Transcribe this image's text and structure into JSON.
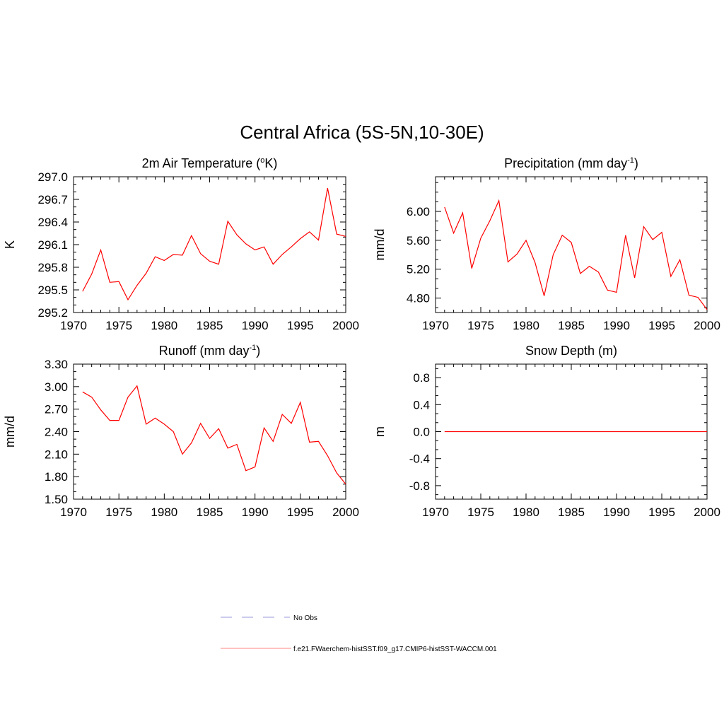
{
  "figure": {
    "title": "Central Africa (5S-5N,10-30E)",
    "line_color": "#ff0000",
    "obs_color": "#9999dd"
  },
  "legend": {
    "placement": "bottom-center",
    "items": [
      {
        "label": "No Obs",
        "style": "dashed",
        "color": "#9999dd"
      },
      {
        "label": "f.e21.FWaerchem-histSST.f09_g17.CMIP6-histSST-WACCM.001",
        "style": "solid",
        "color": "#ff0000"
      }
    ]
  },
  "chart_data": [
    {
      "type": "line",
      "title": "2m Air Temperature (",
      "title_sup": "o",
      "title_after": "K)",
      "ylabel": "K",
      "xlim": [
        1970,
        2000
      ],
      "ylim": [
        295.2,
        297.0
      ],
      "xticks": [
        "1970",
        "1975",
        "1980",
        "1985",
        "1990",
        "1995",
        "2000"
      ],
      "yticks": [
        "295.2",
        "295.5",
        "295.8",
        "296.1",
        "296.4",
        "296.7",
        "297.0"
      ],
      "series": [
        {
          "x": [
            1971,
            1972,
            1973,
            1974,
            1975,
            1976,
            1977,
            1978,
            1979,
            1980,
            1981,
            1982,
            1983,
            1984,
            1985,
            1986,
            1987,
            1988,
            1989,
            1990,
            1991,
            1992,
            1993,
            1994,
            1995,
            1996,
            1997,
            1998,
            1999,
            2000
          ],
          "values": [
            295.48,
            295.71,
            296.03,
            295.6,
            295.61,
            295.37,
            295.56,
            295.72,
            295.94,
            295.89,
            295.97,
            295.96,
            296.22,
            295.98,
            295.88,
            295.84,
            296.41,
            296.23,
            296.11,
            296.03,
            296.07,
            295.84,
            295.97,
            296.07,
            296.18,
            296.27,
            296.16,
            296.85,
            296.24,
            296.21
          ]
        }
      ]
    },
    {
      "type": "line",
      "title": "Precipitation (mm day",
      "title_sup": "-1",
      "title_after": ")",
      "ylabel": "mm/d",
      "xlim": [
        1970,
        2000
      ],
      "ylim": [
        4.6,
        6.48
      ],
      "xticks": [
        "1970",
        "1975",
        "1980",
        "1985",
        "1990",
        "1995",
        "2000"
      ],
      "yticks": [
        "4.80",
        "5.20",
        "5.60",
        "6.00"
      ],
      "ytick_values": [
        4.8,
        5.2,
        5.6,
        6.0
      ],
      "series": [
        {
          "x": [
            1971,
            1972,
            1973,
            1974,
            1975,
            1976,
            1977,
            1978,
            1979,
            1980,
            1981,
            1982,
            1983,
            1984,
            1985,
            1986,
            1987,
            1988,
            1989,
            1990,
            1991,
            1992,
            1993,
            1994,
            1995,
            1996,
            1997,
            1998,
            1999,
            2000
          ],
          "values": [
            6.06,
            5.7,
            5.98,
            5.21,
            5.63,
            5.87,
            6.15,
            5.3,
            5.41,
            5.6,
            5.29,
            4.83,
            5.4,
            5.67,
            5.57,
            5.14,
            5.24,
            5.16,
            4.91,
            4.88,
            5.67,
            5.08,
            5.79,
            5.61,
            5.71,
            5.1,
            5.33,
            4.84,
            4.81,
            4.64
          ]
        }
      ]
    },
    {
      "type": "line",
      "title": "Runoff (mm day",
      "title_sup": "-1",
      "title_after": ")",
      "ylabel": "mm/d",
      "xlim": [
        1970,
        2000
      ],
      "ylim": [
        1.5,
        3.3
      ],
      "xticks": [
        "1970",
        "1975",
        "1980",
        "1985",
        "1990",
        "1995",
        "2000"
      ],
      "yticks": [
        "1.50",
        "1.80",
        "2.10",
        "2.40",
        "2.70",
        "3.00",
        "3.30"
      ],
      "ytick_values": [
        1.5,
        1.8,
        2.1,
        2.4,
        2.7,
        3.0,
        3.3
      ],
      "series": [
        {
          "x": [
            1971,
            1972,
            1973,
            1974,
            1975,
            1976,
            1977,
            1978,
            1979,
            1980,
            1981,
            1982,
            1983,
            1984,
            1985,
            1986,
            1987,
            1988,
            1989,
            1990,
            1991,
            1992,
            1993,
            1994,
            1995,
            1996,
            1997,
            1998,
            1999,
            2000
          ],
          "values": [
            2.93,
            2.86,
            2.69,
            2.55,
            2.55,
            2.86,
            3.01,
            2.5,
            2.58,
            2.5,
            2.4,
            2.1,
            2.25,
            2.51,
            2.31,
            2.44,
            2.18,
            2.23,
            1.88,
            1.93,
            2.45,
            2.27,
            2.63,
            2.51,
            2.79,
            2.26,
            2.27,
            2.08,
            1.85,
            1.7
          ]
        }
      ]
    },
    {
      "type": "line",
      "title": "Snow Depth (m)",
      "title_sup": "",
      "title_after": "",
      "ylabel": "m",
      "xlim": [
        1970,
        2000
      ],
      "ylim": [
        -1.0,
        1.0
      ],
      "xticks": [
        "1970",
        "1975",
        "1980",
        "1985",
        "1990",
        "1995",
        "2000"
      ],
      "yticks": [
        "-0.8",
        "-0.4",
        "0.0",
        "0.4",
        "0.8"
      ],
      "ytick_values": [
        -0.8,
        -0.4,
        0.0,
        0.4,
        0.8
      ],
      "series": [
        {
          "x": [
            1971,
            1972,
            1973,
            1974,
            1975,
            1976,
            1977,
            1978,
            1979,
            1980,
            1981,
            1982,
            1983,
            1984,
            1985,
            1986,
            1987,
            1988,
            1989,
            1990,
            1991,
            1992,
            1993,
            1994,
            1995,
            1996,
            1997,
            1998,
            1999,
            2000
          ],
          "values": [
            0,
            0,
            0,
            0,
            0,
            0,
            0,
            0,
            0,
            0,
            0,
            0,
            0,
            0,
            0,
            0,
            0,
            0,
            0,
            0,
            0,
            0,
            0,
            0,
            0,
            0,
            0,
            0,
            0,
            0
          ]
        }
      ]
    }
  ]
}
